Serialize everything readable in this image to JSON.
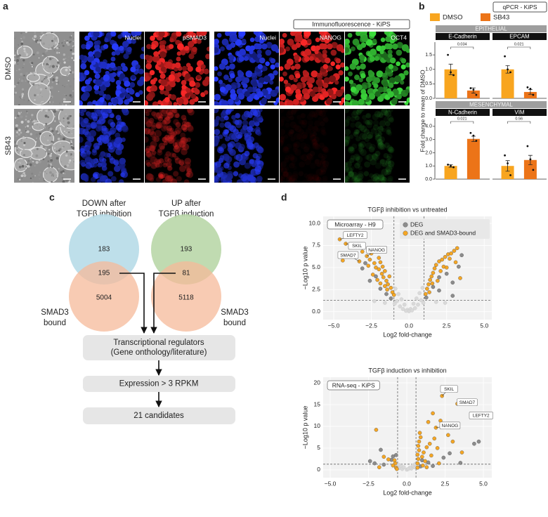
{
  "panel_labels": [
    "a",
    "b",
    "c",
    "d"
  ],
  "panel_a": {
    "header": "Immunofluorescence - KiPS",
    "rows": [
      "DMSO",
      "SB43"
    ],
    "channels": [
      "Nuclei",
      "pSMAD3",
      "Nuclei",
      "NANOG",
      "OCT4"
    ]
  },
  "panel_b": {
    "title": "qPCR - KiPS",
    "legend": [
      {
        "name": "DMSO",
        "color": "#f8a51f"
      },
      {
        "name": "SB43",
        "color": "#ec7418"
      }
    ],
    "groups": [
      "EPITHELIAL",
      "MESENCHYMAL"
    ],
    "y_label": "Fold change to mean of DMSO"
  },
  "panel_c": {
    "sets": [
      {
        "label": [
          "DOWN after",
          "TGFβ inhibition"
        ],
        "only": "183",
        "overlap": "195",
        "smad3": "5004"
      },
      {
        "label": [
          "UP after",
          "TGFβ induction"
        ],
        "only": "193",
        "overlap": "81",
        "smad3": "5118"
      }
    ],
    "smad3_label": [
      "SMAD3",
      "bound"
    ],
    "steps": [
      [
        "Transcriptional regulators",
        "(Gene onthology/literature)"
      ],
      [
        "Expression > 3 RPKM"
      ],
      [
        "21 candidates"
      ]
    ]
  },
  "chart_data": [
    {
      "type": "bar",
      "title": "E-Cadherin",
      "values": [
        1.0,
        0.27
      ],
      "errors": [
        0.18,
        0.09
      ],
      "replicates": [
        [
          1.5,
          0.9,
          0.8
        ],
        [
          0.35,
          0.3,
          0.12
        ]
      ],
      "pvalue": 0.034,
      "ylim": [
        0,
        1.6
      ],
      "yticks": [
        {
          "value": 0,
          "label": "0.0"
        },
        0.5,
        {
          "value": 1,
          "label": "1.0"
        },
        1.5
      ]
    },
    {
      "type": "bar",
      "title": "EPCAM",
      "values": [
        1.0,
        0.22
      ],
      "errors": [
        0.13,
        0.08
      ],
      "replicates": [
        [
          1.45,
          1.0,
          0.9
        ],
        [
          0.38,
          0.33,
          0.12
        ]
      ],
      "pvalue": 0.021,
      "ylim": [
        0,
        1.6
      ]
    },
    {
      "type": "bar",
      "title": "N-Cadherin",
      "values": [
        1.0,
        3.05
      ],
      "errors": [
        0.1,
        0.2
      ],
      "replicates": [
        [
          1.1,
          1.0,
          0.9
        ],
        [
          3.5,
          3.3,
          2.9
        ]
      ],
      "pvalue": 0.021,
      "ylim": [
        0,
        4.1
      ],
      "yticks": [
        {
          "value": 0,
          "label": "0.0"
        },
        {
          "value": 1,
          "label": "1.0"
        },
        {
          "value": 2,
          "label": "2.0"
        },
        {
          "value": 3,
          "label": "3.0"
        },
        {
          "value": 4,
          "label": "4.0"
        }
      ]
    },
    {
      "type": "bar",
      "title": "VIM",
      "values": [
        1.0,
        1.45
      ],
      "errors": [
        0.4,
        0.35
      ],
      "replicates": [
        [
          1.8,
          1.2,
          0.3
        ],
        [
          2.5,
          1.5,
          0.7
        ]
      ],
      "pvalue": 0.56,
      "ylim": [
        0,
        4.1
      ]
    },
    {
      "type": "scatter",
      "title": "TGFβ inhibition vs untreated",
      "inset": "Microarray - H9",
      "x_label": "Log2 fold-change",
      "y_label": "−Log10 p value",
      "xlim": [
        -5.7,
        5.5
      ],
      "ylim": [
        -0.9,
        10.8
      ],
      "xticks": [
        {
          "value": -5,
          "label": "−5.0"
        },
        {
          "value": -2.5,
          "label": "−2.5"
        },
        {
          "value": 0,
          "label": "0.0"
        },
        2.5,
        {
          "value": 5,
          "label": "5.0"
        }
      ],
      "yticks": [
        {
          "value": 0,
          "label": "0.0"
        },
        2.5,
        {
          "value": 5,
          "label": "5.0"
        },
        7.5,
        {
          "value": 10,
          "label": "10.0"
        }
      ],
      "vlines": [
        -1,
        1
      ],
      "hline": 1.3,
      "legend": "upper right",
      "series": [
        {
          "color": "#d9d9d9",
          "x": [
            -0.9,
            -0.7,
            -0.5,
            -0.3,
            -0.1,
            0.1,
            0.3,
            0.5,
            0.7,
            0.9,
            -0.8,
            -0.6,
            -0.4,
            0.4,
            0.6,
            0.8,
            0.0,
            -0.95,
            0.95,
            -0.2,
            0.2,
            -1.6,
            1.8,
            -2.3,
            2.4
          ],
          "values": [
            2.6,
            2.0,
            1.4,
            0.8,
            0.2,
            0.3,
            0.9,
            1.5,
            2.1,
            2.7,
            1.2,
            0.6,
            0.3,
            0.4,
            0.8,
            1.3,
            0.05,
            0.9,
            1.0,
            0.1,
            0.15,
            1.0,
            1.1,
            1.2,
            1.0
          ]
        },
        {
          "name": "DEG",
          "color": "#8c8c8c",
          "x": [
            -3.7,
            -2.9,
            -2.2,
            -1.5,
            -1.2,
            1.15,
            1.6,
            2.0,
            2.5,
            2.9,
            3.3,
            2.9,
            2.0,
            -2.6,
            -1.9,
            3.5,
            -3.1
          ],
          "values": [
            6.5,
            5.5,
            4.0,
            2.0,
            1.5,
            1.6,
            2.8,
            3.9,
            4.3,
            3.3,
            5.1,
            1.8,
            2.4,
            3.5,
            2.6,
            6.4,
            4.9
          ]
        },
        {
          "name": "DEG and SMAD3-bound",
          "color": "#f5a623",
          "x": [
            -4.6,
            -4.2,
            -3.9,
            -4.4,
            -3.1,
            -2.8,
            -2.6,
            -2.5,
            -2.3,
            -2.2,
            -2.0,
            -1.9,
            -1.8,
            -1.7,
            -1.6,
            -1.5,
            -1.4,
            -1.3,
            -1.2,
            -1.1,
            -2.1,
            -2.4,
            -1.6,
            -1.9,
            -2.7,
            -3.3,
            -1.0,
            -1.45,
            -2.0,
            -1.75,
            1.1,
            1.2,
            1.3,
            1.4,
            1.5,
            1.6,
            1.7,
            1.8,
            2.0,
            2.2,
            2.4,
            2.6,
            2.8,
            3.0,
            3.2,
            1.9,
            2.1,
            2.3,
            1.35,
            2.5,
            3.4,
            3.1,
            2.7,
            1.55
          ],
          "values": [
            8.2,
            7.7,
            7.3,
            5.8,
            6.8,
            6.3,
            5.9,
            6.6,
            5.5,
            5.0,
            4.8,
            5.6,
            4.3,
            3.9,
            4.6,
            3.5,
            3.1,
            4.0,
            2.7,
            2.2,
            3.6,
            4.2,
            2.9,
            3.2,
            5.2,
            5.7,
            1.9,
            2.5,
            6.1,
            5.1,
            2.0,
            2.6,
            3.1,
            3.6,
            4.0,
            4.4,
            4.9,
            5.3,
            5.7,
            5.9,
            6.2,
            6.5,
            6.6,
            6.9,
            7.2,
            3.5,
            4.6,
            5.1,
            2.2,
            5.0,
            3.8,
            5.6,
            6.0,
            3.2
          ]
        }
      ],
      "annotations": [
        {
          "text": "LEFTY2",
          "x": -4.6,
          "y": 8.2
        },
        {
          "text": "SKIL",
          "x": -4.2,
          "y": 7.7
        },
        {
          "text": "NANOG",
          "x": -2.8,
          "y": 6.3
        },
        {
          "text": "SMAD7",
          "x": -3.3,
          "y": 5.7
        }
      ]
    },
    {
      "type": "scatter",
      "title": "TGFβ induction vs inhibition",
      "inset": "RNA-seq - KiPS",
      "x_label": "Log2 fold-change",
      "y_label": "−Log10 p value",
      "xlim": [
        -5.46,
        5.55
      ],
      "ylim": [
        -1.8,
        21.3
      ],
      "xticks": [
        {
          "value": -5,
          "label": "−5.0"
        },
        {
          "value": -2.5,
          "label": "−2.5"
        },
        {
          "value": 0,
          "label": "0.0"
        },
        2.5,
        {
          "value": 5,
          "label": "5.0"
        }
      ],
      "yticks": [
        0,
        5,
        10,
        15,
        20
      ],
      "vlines": [
        -0.6,
        0.6
      ],
      "hline": 1.3,
      "series": [
        {
          "color": "#d9d9d9",
          "x": [
            -0.5,
            -0.3,
            0.0,
            0.3,
            0.5,
            -0.4,
            0.4,
            -0.2,
            0.2,
            0.55,
            -0.55,
            0.1
          ],
          "values": [
            0.4,
            0.2,
            0.05,
            0.3,
            0.6,
            0.9,
            1.0,
            0.6,
            0.5,
            1.3,
            1.2,
            0.2
          ]
        },
        {
          "color": "#8c8c8c",
          "x": [
            -2.4,
            -2.1,
            -1.7,
            -1.0,
            -0.9,
            -1.5,
            1.0,
            1.4,
            2.4,
            2.8,
            3.5,
            4.7,
            4.4,
            1.7,
            0.9,
            -0.7
          ],
          "values": [
            2.0,
            1.5,
            4.6,
            2.3,
            3.1,
            1.2,
            2.2,
            1.7,
            2.8,
            3.8,
            1.6,
            6.5,
            6.0,
            0.9,
            0.8,
            3.4
          ]
        },
        {
          "color": "#f5a623",
          "x": [
            0.7,
            0.7,
            0.75,
            0.7,
            0.8,
            0.75,
            0.8,
            0.9,
            0.85,
            1.0,
            1.1,
            1.2,
            1.3,
            1.5,
            1.6,
            1.8,
            2.0,
            2.1,
            2.3,
            2.5,
            3.3,
            4.3,
            1.9,
            2.7,
            1.4,
            1.7,
            2.2,
            3.0,
            3.6,
            1.05,
            1.3,
            -0.7,
            -0.75,
            -0.8,
            -0.9,
            -1.2,
            -1.8,
            -2.0,
            -1.5,
            -0.65
          ],
          "values": [
            0.5,
            1.5,
            2.5,
            3.5,
            4.5,
            5.5,
            6.5,
            7.5,
            8.5,
            3.0,
            4.0,
            2.0,
            5.2,
            6.0,
            3.3,
            7.2,
            5.0,
            1.5,
            17.0,
            10.5,
            15.2,
            12.5,
            9.7,
            8.0,
            11.0,
            13.0,
            11.3,
            6.5,
            4.0,
            1.0,
            0.6,
            0.5,
            1.5,
            2.2,
            1.0,
            2.4,
            0.6,
            9.2,
            3.0,
            0.2
          ]
        }
      ],
      "annotations": [
        {
          "text": "SKIL",
          "x": 2.3,
          "y": 17.0
        },
        {
          "text": "SMAD7",
          "x": 3.3,
          "y": 15.2
        },
        {
          "text": "LEFTY2",
          "x": 4.3,
          "y": 12.5
        },
        {
          "text": "NANOG",
          "x": 1.9,
          "y": 9.7
        }
      ]
    }
  ]
}
